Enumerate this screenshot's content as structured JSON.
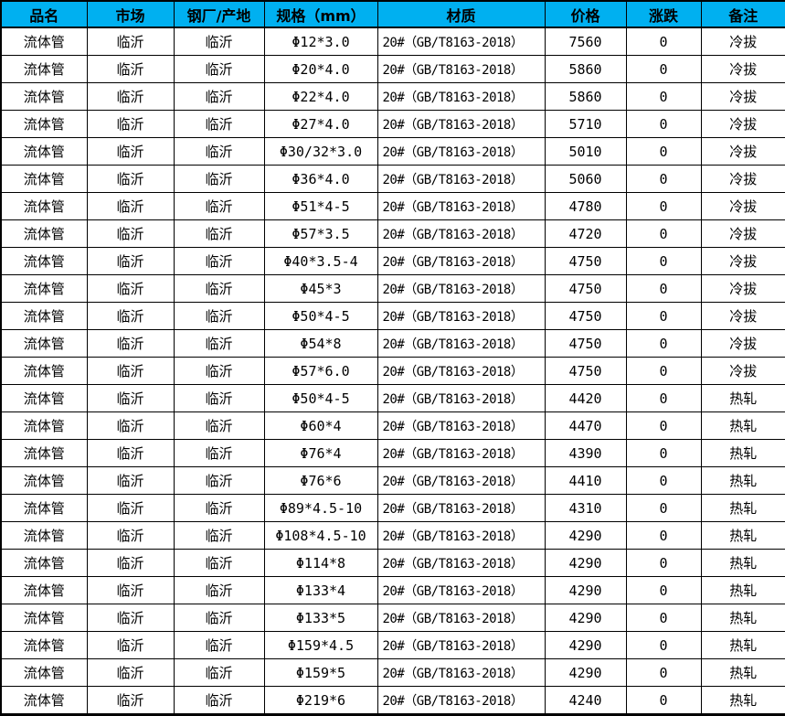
{
  "colors": {
    "header_bg": "#00b0f0",
    "border": "#000000",
    "row_bg": "#ffffff",
    "text": "#000000"
  },
  "table": {
    "columns": [
      "品名",
      "市场",
      "钢厂/产地",
      "规格（mm）",
      "材质",
      "价格",
      "涨跌",
      "备注"
    ],
    "rows": [
      [
        "流体管",
        "临沂",
        "临沂",
        "Φ12*3.0",
        "20#（GB/T8163-2018）",
        "7560",
        "0",
        "冷拔"
      ],
      [
        "流体管",
        "临沂",
        "临沂",
        "Φ20*4.0",
        "20#（GB/T8163-2018）",
        "5860",
        "0",
        "冷拔"
      ],
      [
        "流体管",
        "临沂",
        "临沂",
        "Φ22*4.0",
        "20#（GB/T8163-2018）",
        "5860",
        "0",
        "冷拔"
      ],
      [
        "流体管",
        "临沂",
        "临沂",
        "Φ27*4.0",
        "20#（GB/T8163-2018）",
        "5710",
        "0",
        "冷拔"
      ],
      [
        "流体管",
        "临沂",
        "临沂",
        "Φ30/32*3.0",
        "20#（GB/T8163-2018）",
        "5010",
        "0",
        "冷拔"
      ],
      [
        "流体管",
        "临沂",
        "临沂",
        "Φ36*4.0",
        "20#（GB/T8163-2018）",
        "5060",
        "0",
        "冷拔"
      ],
      [
        "流体管",
        "临沂",
        "临沂",
        "Φ51*4-5",
        "20#（GB/T8163-2018）",
        "4780",
        "0",
        "冷拔"
      ],
      [
        "流体管",
        "临沂",
        "临沂",
        "Φ57*3.5",
        "20#（GB/T8163-2018）",
        "4720",
        "0",
        "冷拔"
      ],
      [
        "流体管",
        "临沂",
        "临沂",
        "Φ40*3.5-4",
        "20#（GB/T8163-2018）",
        "4750",
        "0",
        "冷拔"
      ],
      [
        "流体管",
        "临沂",
        "临沂",
        "Φ45*3",
        "20#（GB/T8163-2018）",
        "4750",
        "0",
        "冷拔"
      ],
      [
        "流体管",
        "临沂",
        "临沂",
        "Φ50*4-5",
        "20#（GB/T8163-2018）",
        "4750",
        "0",
        "冷拔"
      ],
      [
        "流体管",
        "临沂",
        "临沂",
        "Φ54*8",
        "20#（GB/T8163-2018）",
        "4750",
        "0",
        "冷拔"
      ],
      [
        "流体管",
        "临沂",
        "临沂",
        "Φ57*6.0",
        "20#（GB/T8163-2018）",
        "4750",
        "0",
        "冷拔"
      ],
      [
        "流体管",
        "临沂",
        "临沂",
        "Φ50*4-5",
        "20#（GB/T8163-2018）",
        "4420",
        "0",
        "热轧"
      ],
      [
        "流体管",
        "临沂",
        "临沂",
        "Φ60*4",
        "20#（GB/T8163-2018）",
        "4470",
        "0",
        "热轧"
      ],
      [
        "流体管",
        "临沂",
        "临沂",
        "Φ76*4",
        "20#（GB/T8163-2018）",
        "4390",
        "0",
        "热轧"
      ],
      [
        "流体管",
        "临沂",
        "临沂",
        "Φ76*6",
        "20#（GB/T8163-2018）",
        "4410",
        "0",
        "热轧"
      ],
      [
        "流体管",
        "临沂",
        "临沂",
        "Φ89*4.5-10",
        "20#（GB/T8163-2018）",
        "4310",
        "0",
        "热轧"
      ],
      [
        "流体管",
        "临沂",
        "临沂",
        "Φ108*4.5-10",
        "20#（GB/T8163-2018）",
        "4290",
        "0",
        "热轧"
      ],
      [
        "流体管",
        "临沂",
        "临沂",
        "Φ114*8",
        "20#（GB/T8163-2018）",
        "4290",
        "0",
        "热轧"
      ],
      [
        "流体管",
        "临沂",
        "临沂",
        "Φ133*4",
        "20#（GB/T8163-2018）",
        "4290",
        "0",
        "热轧"
      ],
      [
        "流体管",
        "临沂",
        "临沂",
        "Φ133*5",
        "20#（GB/T8163-2018）",
        "4290",
        "0",
        "热轧"
      ],
      [
        "流体管",
        "临沂",
        "临沂",
        "Φ159*4.5",
        "20#（GB/T8163-2018）",
        "4290",
        "0",
        "热轧"
      ],
      [
        "流体管",
        "临沂",
        "临沂",
        "Φ159*5",
        "20#（GB/T8163-2018）",
        "4290",
        "0",
        "热轧"
      ],
      [
        "流体管",
        "临沂",
        "临沂",
        "Φ219*6",
        "20#（GB/T8163-2018）",
        "4240",
        "0",
        "热轧"
      ]
    ]
  }
}
